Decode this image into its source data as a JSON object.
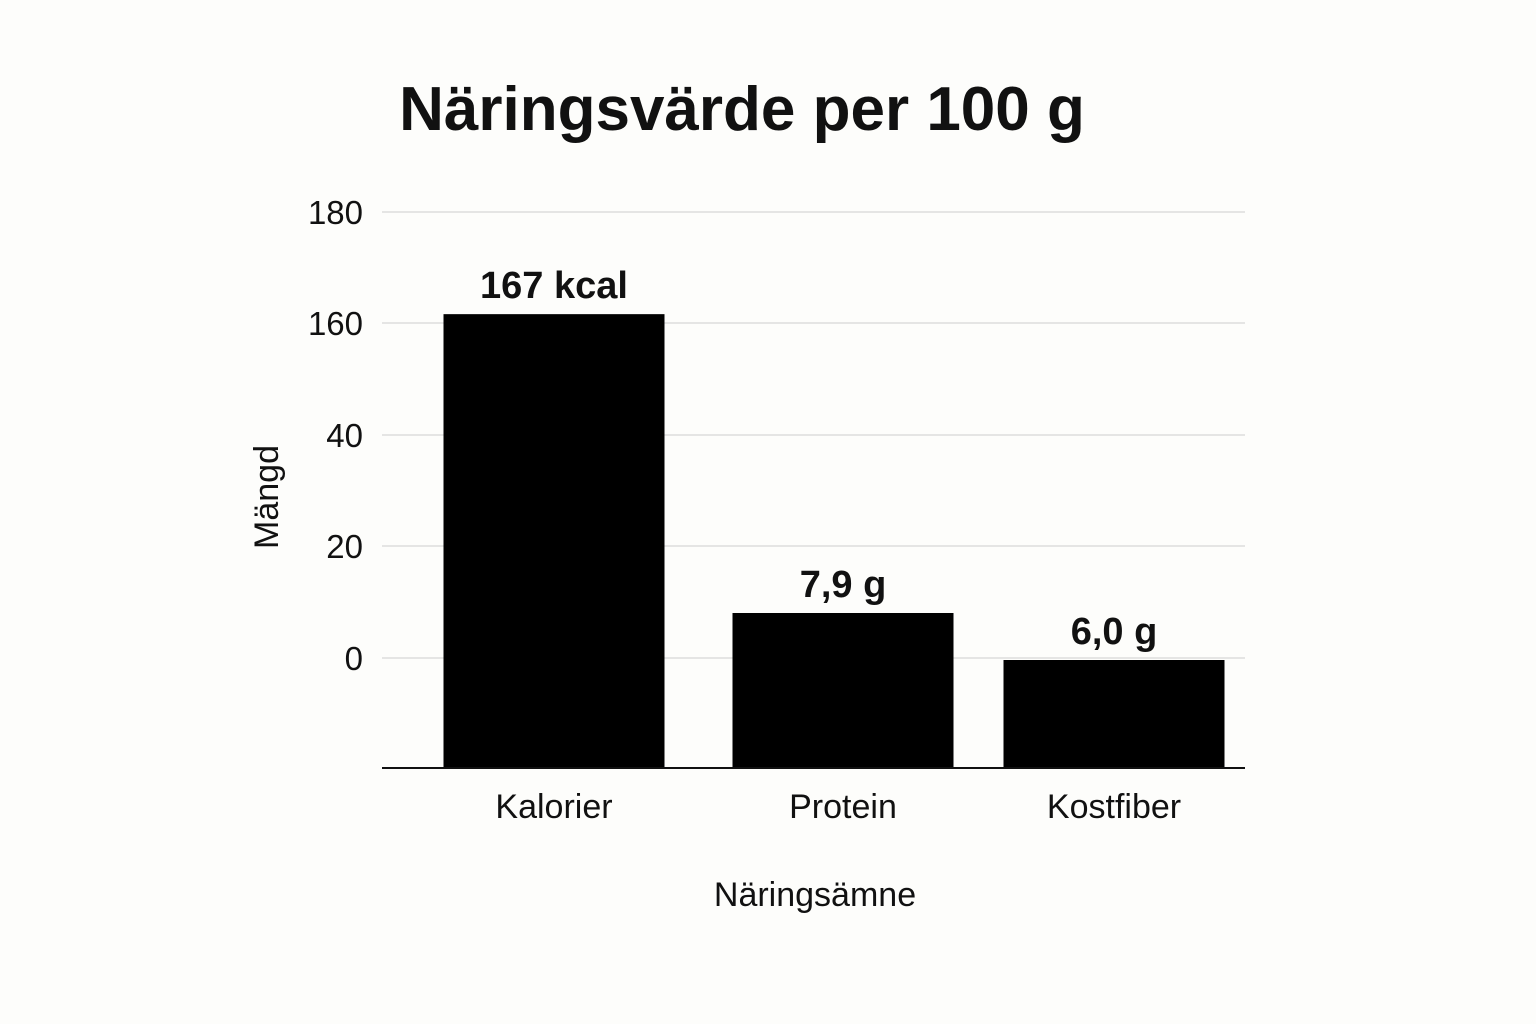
{
  "chart_data": {
    "type": "bar",
    "title": "Näringsvärde per 100 g",
    "xlabel": "Näringsämne",
    "ylabel": "Mängd",
    "categories": [
      "Kalorier",
      "Protein",
      "Kostfiber"
    ],
    "values": [
      167,
      7.9,
      6.0
    ],
    "data_labels": [
      "167 kcal",
      "7,9 g",
      "6,0 g"
    ],
    "y_ticks": [
      "0",
      "20",
      "40",
      "160",
      "180"
    ],
    "grid": true,
    "legend": "none",
    "colors": {
      "bar": "#000000",
      "grid": "#dddddd",
      "axis": "#111111",
      "background": "#fdfdfb"
    }
  }
}
